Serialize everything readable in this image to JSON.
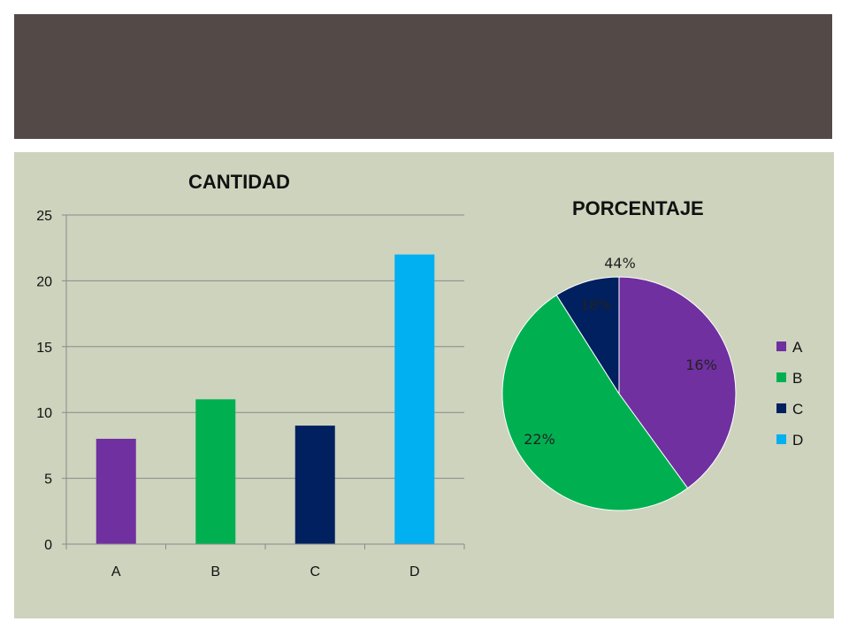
{
  "slide": {
    "header_color": "#534a48",
    "panel_color": "#cdd3bd"
  },
  "chart_data": [
    {
      "type": "bar",
      "title": "CANTIDAD",
      "categories": [
        "A",
        "B",
        "C",
        "D"
      ],
      "values": [
        8,
        11,
        9,
        22
      ],
      "colors": [
        "#7030a0",
        "#00b050",
        "#002060",
        "#00b0f0"
      ],
      "ylim": [
        0,
        25
      ],
      "yticks": [
        "0",
        "5",
        "10",
        "15",
        "20",
        "25"
      ],
      "grid": true
    },
    {
      "type": "pie",
      "title": "PORCENTAJE",
      "categories": [
        "A",
        "B",
        "C",
        "D"
      ],
      "values": [
        16,
        22,
        18,
        44
      ],
      "data_labels": [
        "16%",
        "22%",
        "18%",
        "44%"
      ],
      "label_notes": "Data labels as printed on the chart",
      "colors": [
        "#7030a0",
        "#00b050",
        "#002060",
        "#00b0f0"
      ],
      "legend_position": "right",
      "legend_entries": [
        "A",
        "B",
        "C",
        "D"
      ]
    }
  ]
}
